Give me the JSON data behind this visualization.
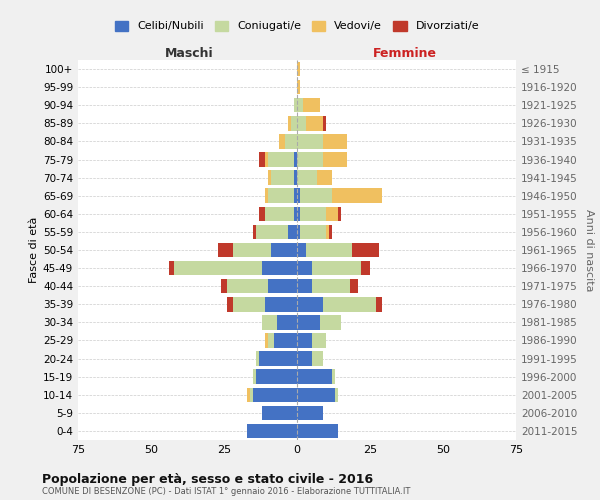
{
  "age_groups": [
    "0-4",
    "5-9",
    "10-14",
    "15-19",
    "20-24",
    "25-29",
    "30-34",
    "35-39",
    "40-44",
    "45-49",
    "50-54",
    "55-59",
    "60-64",
    "65-69",
    "70-74",
    "75-79",
    "80-84",
    "85-89",
    "90-94",
    "95-99",
    "100+"
  ],
  "birth_years": [
    "2011-2015",
    "2006-2010",
    "2001-2005",
    "1996-2000",
    "1991-1995",
    "1986-1990",
    "1981-1985",
    "1976-1980",
    "1971-1975",
    "1966-1970",
    "1961-1965",
    "1956-1960",
    "1951-1955",
    "1946-1950",
    "1941-1945",
    "1936-1940",
    "1931-1935",
    "1926-1930",
    "1921-1925",
    "1916-1920",
    "≤ 1915"
  ],
  "male": {
    "celibi": [
      17,
      12,
      15,
      14,
      13,
      8,
      7,
      11,
      10,
      12,
      9,
      3,
      1,
      1,
      1,
      1,
      0,
      0,
      0,
      0,
      0
    ],
    "coniugati": [
      0,
      0,
      1,
      1,
      1,
      2,
      5,
      11,
      14,
      30,
      13,
      11,
      10,
      9,
      8,
      9,
      4,
      2,
      1,
      0,
      0
    ],
    "vedovi": [
      0,
      0,
      1,
      0,
      0,
      1,
      0,
      0,
      0,
      0,
      0,
      0,
      0,
      1,
      1,
      1,
      2,
      1,
      0,
      0,
      0
    ],
    "divorziati": [
      0,
      0,
      0,
      0,
      0,
      0,
      0,
      2,
      2,
      2,
      5,
      1,
      2,
      0,
      0,
      2,
      0,
      0,
      0,
      0,
      0
    ]
  },
  "female": {
    "celibi": [
      14,
      9,
      13,
      12,
      5,
      5,
      8,
      9,
      5,
      5,
      3,
      1,
      1,
      1,
      0,
      0,
      0,
      0,
      0,
      0,
      0
    ],
    "coniugati": [
      0,
      0,
      1,
      1,
      4,
      5,
      7,
      18,
      13,
      17,
      16,
      9,
      9,
      11,
      7,
      9,
      9,
      3,
      2,
      0,
      0
    ],
    "vedovi": [
      0,
      0,
      0,
      0,
      0,
      0,
      0,
      0,
      0,
      0,
      0,
      1,
      4,
      17,
      5,
      8,
      8,
      6,
      6,
      1,
      1
    ],
    "divorziati": [
      0,
      0,
      0,
      0,
      0,
      0,
      0,
      2,
      3,
      3,
      9,
      1,
      1,
      0,
      0,
      0,
      0,
      1,
      0,
      0,
      0
    ]
  },
  "colors": {
    "celibi": "#4472C4",
    "coniugati": "#c5d9a0",
    "vedovi": "#f0c060",
    "divorziati": "#c0392b"
  },
  "title": "Popolazione per età, sesso e stato civile - 2016",
  "subtitle": "COMUNE DI BESENZONE (PC) - Dati ISTAT 1° gennaio 2016 - Elaborazione TUTTITALIA.IT",
  "xlabel_left": "Maschi",
  "xlabel_right": "Femmine",
  "ylabel_left": "Fasce di età",
  "ylabel_right": "Anni di nascita",
  "xlim": 75,
  "legend_labels": [
    "Celibi/Nubili",
    "Coniugati/e",
    "Vedovi/e",
    "Divorziati/e"
  ],
  "bg_color": "#f0f0f0",
  "plot_bg_color": "#ffffff",
  "grid_color": "#cccccc"
}
